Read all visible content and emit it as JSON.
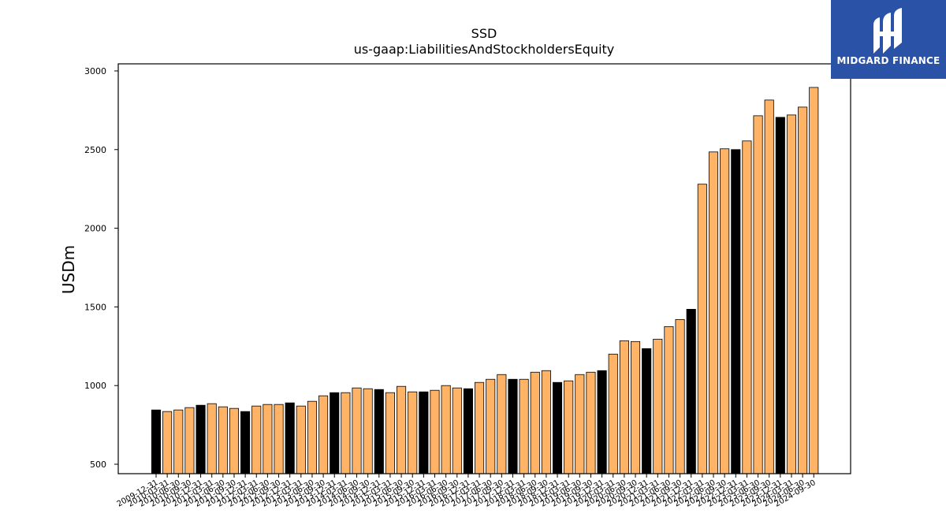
{
  "logo": {
    "text": "MIDGARD FINANCE",
    "background": "#2a52a7"
  },
  "chart_data": {
    "type": "bar",
    "title": "SSD",
    "subtitle": "us-gaap:LiabilitiesAndStockholdersEquity",
    "xlabel": "",
    "ylabel": "USDm",
    "ylim": [
      440,
      3045
    ],
    "yticks": [
      500,
      1000,
      1500,
      2000,
      2500,
      3000
    ],
    "grid": false,
    "colors": {
      "annual": "#000000",
      "quarterly": "#ffb366",
      "edge": "#000000"
    },
    "categories": [
      "2009-12-31",
      "2010-03-31",
      "2010-06-30",
      "2010-09-30",
      "2010-12-31",
      "2011-03-31",
      "2011-06-30",
      "2011-09-30",
      "2011-12-31",
      "2012-03-31",
      "2012-06-30",
      "2012-09-30",
      "2012-12-31",
      "2013-03-31",
      "2013-06-30",
      "2013-09-30",
      "2013-12-31",
      "2014-03-31",
      "2014-06-30",
      "2014-09-30",
      "2014-12-31",
      "2015-03-31",
      "2015-06-30",
      "2015-09-30",
      "2015-12-31",
      "2016-03-31",
      "2016-06-30",
      "2016-09-30",
      "2016-12-31",
      "2017-03-31",
      "2017-06-30",
      "2017-09-30",
      "2017-12-31",
      "2018-03-31",
      "2018-06-30",
      "2018-09-30",
      "2018-12-31",
      "2019-03-31",
      "2019-06-30",
      "2019-09-30",
      "2019-12-31",
      "2020-03-31",
      "2020-06-30",
      "2020-09-30",
      "2020-12-31",
      "2021-03-31",
      "2021-06-30",
      "2021-09-30",
      "2021-12-31",
      "2022-03-31",
      "2022-06-30",
      "2022-09-30",
      "2022-12-31",
      "2023-03-31",
      "2023-06-30",
      "2023-09-30",
      "2023-12-31",
      "2024-03-31",
      "2024-06-30",
      "2024-09-30"
    ],
    "values": [
      845,
      835,
      845,
      860,
      875,
      885,
      865,
      855,
      835,
      870,
      880,
      880,
      890,
      870,
      900,
      935,
      955,
      955,
      985,
      980,
      975,
      955,
      995,
      960,
      960,
      970,
      1000,
      985,
      980,
      1020,
      1040,
      1070,
      1040,
      1040,
      1085,
      1095,
      1020,
      1030,
      1070,
      1085,
      1095,
      1200,
      1285,
      1280,
      1235,
      1295,
      1375,
      1420,
      1485,
      2280,
      2485,
      2505,
      2500,
      2555,
      2715,
      2815,
      2705,
      2720,
      2770,
      2895
    ],
    "annual": [
      true,
      false,
      false,
      false,
      true,
      false,
      false,
      false,
      true,
      false,
      false,
      false,
      true,
      false,
      false,
      false,
      true,
      false,
      false,
      false,
      true,
      false,
      false,
      false,
      true,
      false,
      false,
      false,
      true,
      false,
      false,
      false,
      true,
      false,
      false,
      false,
      true,
      false,
      false,
      false,
      true,
      false,
      false,
      false,
      true,
      false,
      false,
      false,
      true,
      false,
      false,
      false,
      true,
      false,
      false,
      false,
      true,
      false,
      false,
      false
    ]
  }
}
